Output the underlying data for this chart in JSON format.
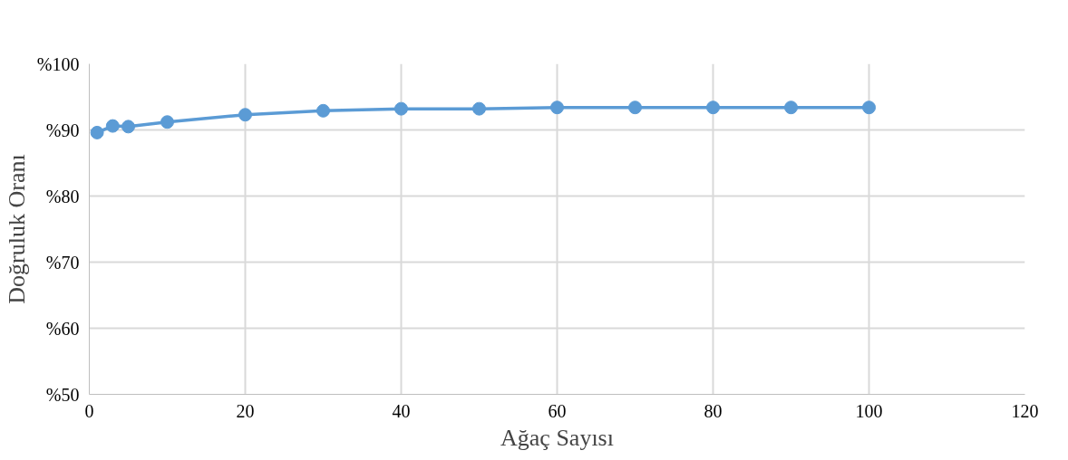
{
  "chart_data": {
    "type": "line",
    "xlabel": "Ağaç Sayısı",
    "ylabel": "Doğruluk Oranı",
    "x": [
      1,
      3,
      5,
      10,
      20,
      30,
      40,
      50,
      60,
      70,
      80,
      90,
      100
    ],
    "series": [
      {
        "color": "#5b9bd5",
        "values": [
          89.6,
          90.6,
          90.5,
          91.2,
          92.3,
          92.9,
          93.2,
          93.2,
          93.4,
          93.4,
          93.4,
          93.4,
          93.4
        ]
      }
    ],
    "xlim": [
      0,
      120
    ],
    "xticks": [
      0,
      20,
      40,
      60,
      80,
      100,
      120
    ],
    "ylim": [
      50,
      100
    ],
    "yticks": [
      {
        "value": 50,
        "label": "%50"
      },
      {
        "value": 60,
        "label": "%60"
      },
      {
        "value": 70,
        "label": "%70"
      },
      {
        "value": 80,
        "label": "%80"
      },
      {
        "value": 90,
        "label": "%90"
      },
      {
        "value": 100,
        "label": "%100"
      }
    ],
    "grid": true,
    "marker": "circle",
    "line_style": "solid"
  }
}
